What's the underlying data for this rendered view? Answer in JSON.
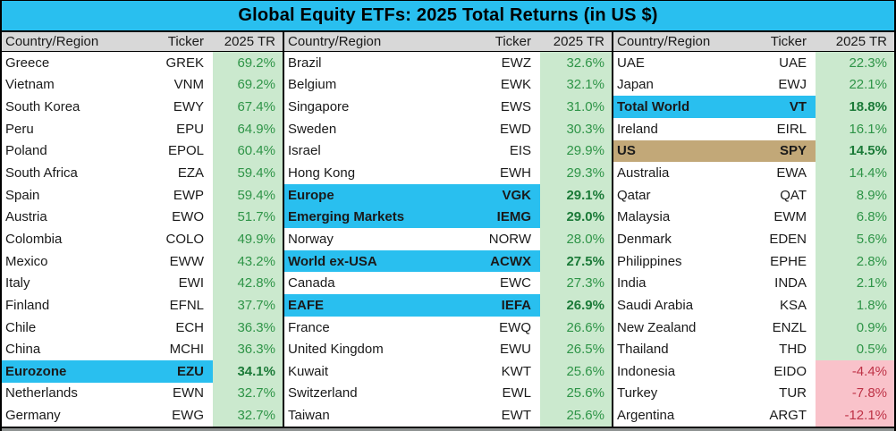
{
  "title": "Global Equity ETFs: 2025 Total Returns (in US $)",
  "headers": {
    "country": "Country/Region",
    "ticker": "Ticker",
    "tr": "2025 TR"
  },
  "colors": {
    "title_and_highlight_cyan": "#29BFEF",
    "us_highlight_tan": "#C2A878",
    "positive_cell_bg": "#CBE9CE",
    "positive_text": "#2E9447",
    "positive_text_bold": "#1B7A38",
    "negative_cell_bg": "#F9C2CA",
    "negative_text": "#BE3246",
    "header_bg": "#D8D8D8"
  },
  "groups": [
    {
      "rows": [
        {
          "country": "Greece",
          "ticker": "GREK",
          "tr": "69.2%"
        },
        {
          "country": "Vietnam",
          "ticker": "VNM",
          "tr": "69.2%"
        },
        {
          "country": "South Korea",
          "ticker": "EWY",
          "tr": "67.4%"
        },
        {
          "country": "Peru",
          "ticker": "EPU",
          "tr": "64.9%"
        },
        {
          "country": "Poland",
          "ticker": "EPOL",
          "tr": "60.4%"
        },
        {
          "country": "South Africa",
          "ticker": "EZA",
          "tr": "59.4%"
        },
        {
          "country": "Spain",
          "ticker": "EWP",
          "tr": "59.4%"
        },
        {
          "country": "Austria",
          "ticker": "EWO",
          "tr": "51.7%"
        },
        {
          "country": "Colombia",
          "ticker": "COLO",
          "tr": "49.9%"
        },
        {
          "country": "Mexico",
          "ticker": "EWW",
          "tr": "43.2%"
        },
        {
          "country": "Italy",
          "ticker": "EWI",
          "tr": "42.8%"
        },
        {
          "country": "Finland",
          "ticker": "EFNL",
          "tr": "37.7%"
        },
        {
          "country": "Chile",
          "ticker": "ECH",
          "tr": "36.3%"
        },
        {
          "country": "China",
          "ticker": "MCHI",
          "tr": "36.3%"
        },
        {
          "country": "Eurozone",
          "ticker": "EZU",
          "tr": "34.1%",
          "highlight": "cyan"
        },
        {
          "country": "Netherlands",
          "ticker": "EWN",
          "tr": "32.7%"
        },
        {
          "country": "Germany",
          "ticker": "EWG",
          "tr": "32.7%"
        }
      ]
    },
    {
      "rows": [
        {
          "country": "Brazil",
          "ticker": "EWZ",
          "tr": "32.6%"
        },
        {
          "country": "Belgium",
          "ticker": "EWK",
          "tr": "32.1%"
        },
        {
          "country": "Singapore",
          "ticker": "EWS",
          "tr": "31.0%"
        },
        {
          "country": "Sweden",
          "ticker": "EWD",
          "tr": "30.3%"
        },
        {
          "country": "Israel",
          "ticker": "EIS",
          "tr": "29.9%"
        },
        {
          "country": "Hong Kong",
          "ticker": "EWH",
          "tr": "29.3%"
        },
        {
          "country": "Europe",
          "ticker": "VGK",
          "tr": "29.1%",
          "highlight": "cyan"
        },
        {
          "country": "Emerging Markets",
          "ticker": "IEMG",
          "tr": "29.0%",
          "highlight": "cyan"
        },
        {
          "country": "Norway",
          "ticker": "NORW",
          "tr": "28.0%"
        },
        {
          "country": "World ex-USA",
          "ticker": "ACWX",
          "tr": "27.5%",
          "highlight": "cyan"
        },
        {
          "country": "Canada",
          "ticker": "EWC",
          "tr": "27.3%"
        },
        {
          "country": "EAFE",
          "ticker": "IEFA",
          "tr": "26.9%",
          "highlight": "cyan"
        },
        {
          "country": "France",
          "ticker": "EWQ",
          "tr": "26.6%"
        },
        {
          "country": "United Kingdom",
          "ticker": "EWU",
          "tr": "26.5%"
        },
        {
          "country": "Kuwait",
          "ticker": "KWT",
          "tr": "25.6%"
        },
        {
          "country": "Switzerland",
          "ticker": "EWL",
          "tr": "25.6%"
        },
        {
          "country": "Taiwan",
          "ticker": "EWT",
          "tr": "25.6%"
        }
      ]
    },
    {
      "rows": [
        {
          "country": "UAE",
          "ticker": "UAE",
          "tr": "22.3%"
        },
        {
          "country": "Japan",
          "ticker": "EWJ",
          "tr": "22.1%"
        },
        {
          "country": "Total World",
          "ticker": "VT",
          "tr": "18.8%",
          "highlight": "cyan"
        },
        {
          "country": "Ireland",
          "ticker": "EIRL",
          "tr": "16.1%"
        },
        {
          "country": "US",
          "ticker": "SPY",
          "tr": "14.5%",
          "highlight": "tan"
        },
        {
          "country": "Australia",
          "ticker": "EWA",
          "tr": "14.4%"
        },
        {
          "country": "Qatar",
          "ticker": "QAT",
          "tr": "8.9%"
        },
        {
          "country": "Malaysia",
          "ticker": "EWM",
          "tr": "6.8%"
        },
        {
          "country": "Denmark",
          "ticker": "EDEN",
          "tr": "5.6%"
        },
        {
          "country": "Philippines",
          "ticker": "EPHE",
          "tr": "2.8%"
        },
        {
          "country": "India",
          "ticker": "INDA",
          "tr": "2.1%"
        },
        {
          "country": "Saudi Arabia",
          "ticker": "KSA",
          "tr": "1.8%"
        },
        {
          "country": "New Zealand",
          "ticker": "ENZL",
          "tr": "0.9%"
        },
        {
          "country": "Thailand",
          "ticker": "THD",
          "tr": "0.5%"
        },
        {
          "country": "Indonesia",
          "ticker": "EIDO",
          "tr": "-4.4%",
          "negative": true
        },
        {
          "country": "Turkey",
          "ticker": "TUR",
          "tr": "-7.8%",
          "negative": true
        },
        {
          "country": "Argentina",
          "ticker": "ARGT",
          "tr": "-12.1%",
          "negative": true
        }
      ]
    }
  ],
  "chart_data": {
    "type": "table",
    "title": "Global Equity ETFs: 2025 Total Returns (in US $)",
    "columns": [
      "Country/Region",
      "Ticker",
      "2025 TR (%)"
    ],
    "rows": [
      [
        "Greece",
        "GREK",
        69.2
      ],
      [
        "Vietnam",
        "VNM",
        69.2
      ],
      [
        "South Korea",
        "EWY",
        67.4
      ],
      [
        "Peru",
        "EPU",
        64.9
      ],
      [
        "Poland",
        "EPOL",
        60.4
      ],
      [
        "South Africa",
        "EZA",
        59.4
      ],
      [
        "Spain",
        "EWP",
        59.4
      ],
      [
        "Austria",
        "EWO",
        51.7
      ],
      [
        "Colombia",
        "COLO",
        49.9
      ],
      [
        "Mexico",
        "EWW",
        43.2
      ],
      [
        "Italy",
        "EWI",
        42.8
      ],
      [
        "Finland",
        "EFNL",
        37.7
      ],
      [
        "Chile",
        "ECH",
        36.3
      ],
      [
        "China",
        "MCHI",
        36.3
      ],
      [
        "Eurozone",
        "EZU",
        34.1
      ],
      [
        "Netherlands",
        "EWN",
        32.7
      ],
      [
        "Germany",
        "EWG",
        32.7
      ],
      [
        "Brazil",
        "EWZ",
        32.6
      ],
      [
        "Belgium",
        "EWK",
        32.1
      ],
      [
        "Singapore",
        "EWS",
        31.0
      ],
      [
        "Sweden",
        "EWD",
        30.3
      ],
      [
        "Israel",
        "EIS",
        29.9
      ],
      [
        "Hong Kong",
        "EWH",
        29.3
      ],
      [
        "Europe",
        "VGK",
        29.1
      ],
      [
        "Emerging Markets",
        "IEMG",
        29.0
      ],
      [
        "Norway",
        "NORW",
        28.0
      ],
      [
        "World ex-USA",
        "ACWX",
        27.5
      ],
      [
        "Canada",
        "EWC",
        27.3
      ],
      [
        "EAFE",
        "IEFA",
        26.9
      ],
      [
        "France",
        "EWQ",
        26.6
      ],
      [
        "United Kingdom",
        "EWU",
        26.5
      ],
      [
        "Kuwait",
        "KWT",
        25.6
      ],
      [
        "Switzerland",
        "EWL",
        25.6
      ],
      [
        "Taiwan",
        "EWT",
        25.6
      ],
      [
        "UAE",
        "UAE",
        22.3
      ],
      [
        "Japan",
        "EWJ",
        22.1
      ],
      [
        "Total World",
        "VT",
        18.8
      ],
      [
        "Ireland",
        "EIRL",
        16.1
      ],
      [
        "US",
        "SPY",
        14.5
      ],
      [
        "Australia",
        "EWA",
        14.4
      ],
      [
        "Qatar",
        "QAT",
        8.9
      ],
      [
        "Malaysia",
        "EWM",
        6.8
      ],
      [
        "Denmark",
        "EDEN",
        5.6
      ],
      [
        "Philippines",
        "EPHE",
        2.8
      ],
      [
        "India",
        "INDA",
        2.1
      ],
      [
        "Saudi Arabia",
        "KSA",
        1.8
      ],
      [
        "New Zealand",
        "ENZL",
        0.9
      ],
      [
        "Thailand",
        "THD",
        0.5
      ],
      [
        "Indonesia",
        "EIDO",
        -4.4
      ],
      [
        "Turkey",
        "TUR",
        -7.8
      ],
      [
        "Argentina",
        "ARGT",
        -12.1
      ]
    ],
    "notes": "Benchmark rows highlighted cyan (Eurozone, Europe, Emerging Markets, World ex-USA, EAFE, Total World) and tan (US); positive returns on green cells, negative on pink cells."
  }
}
